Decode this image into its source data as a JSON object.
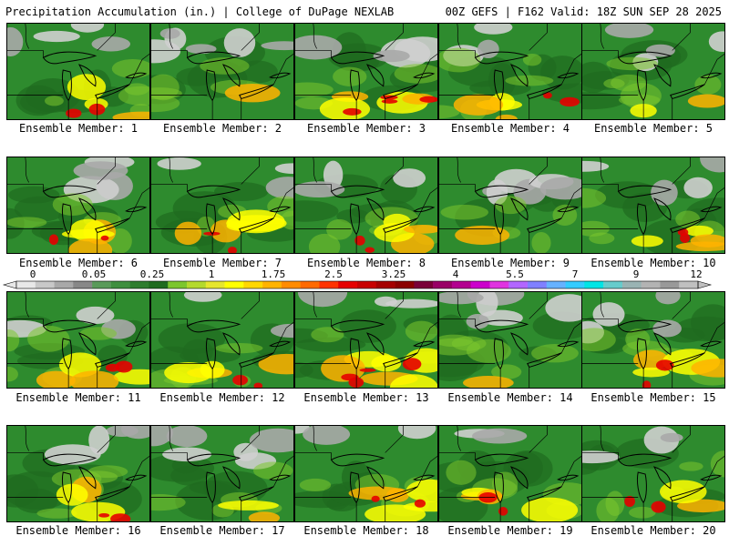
{
  "header": {
    "left": "Precipitation Accumulation (in.) | College of DuPage NEXLAB",
    "right": "00Z GEFS | F162 Valid: 18Z SUN SEP 28 2025"
  },
  "caption_prefix": "Ensemble Member: ",
  "members": [
    {
      "label": "Ensemble Member: 1",
      "gray": 0.3,
      "green": 0.45,
      "yellow": 0.2,
      "red": 0.05
    },
    {
      "label": "Ensemble Member: 2",
      "gray": 0.45,
      "green": 0.45,
      "yellow": 0.1,
      "red": 0.0
    },
    {
      "label": "Ensemble Member: 3",
      "gray": 0.25,
      "green": 0.35,
      "yellow": 0.3,
      "red": 0.1
    },
    {
      "label": "Ensemble Member: 4",
      "gray": 0.2,
      "green": 0.45,
      "yellow": 0.3,
      "red": 0.05
    },
    {
      "label": "Ensemble Member: 5",
      "gray": 0.3,
      "green": 0.55,
      "yellow": 0.15,
      "red": 0.0
    },
    {
      "label": "Ensemble Member: 6",
      "gray": 0.25,
      "green": 0.4,
      "yellow": 0.3,
      "red": 0.05
    },
    {
      "label": "Ensemble Member: 7",
      "gray": 0.2,
      "green": 0.4,
      "yellow": 0.35,
      "red": 0.05
    },
    {
      "label": "Ensemble Member: 8",
      "gray": 0.2,
      "green": 0.5,
      "yellow": 0.25,
      "red": 0.05
    },
    {
      "label": "Ensemble Member: 9",
      "gray": 0.45,
      "green": 0.45,
      "yellow": 0.1,
      "red": 0.0
    },
    {
      "label": "Ensemble Member: 10",
      "gray": 0.25,
      "green": 0.45,
      "yellow": 0.25,
      "red": 0.05
    },
    {
      "label": "Ensemble Member: 11",
      "gray": 0.2,
      "green": 0.45,
      "yellow": 0.3,
      "red": 0.05
    },
    {
      "label": "Ensemble Member: 12",
      "gray": 0.15,
      "green": 0.5,
      "yellow": 0.3,
      "red": 0.05
    },
    {
      "label": "Ensemble Member: 13",
      "gray": 0.2,
      "green": 0.3,
      "yellow": 0.4,
      "red": 0.1
    },
    {
      "label": "Ensemble Member: 14",
      "gray": 0.4,
      "green": 0.55,
      "yellow": 0.05,
      "red": 0.0
    },
    {
      "label": "Ensemble Member: 15",
      "gray": 0.25,
      "green": 0.45,
      "yellow": 0.25,
      "red": 0.05
    },
    {
      "label": "Ensemble Member: 16",
      "gray": 0.25,
      "green": 0.5,
      "yellow": 0.2,
      "red": 0.05
    },
    {
      "label": "Ensemble Member: 17",
      "gray": 0.4,
      "green": 0.45,
      "yellow": 0.15,
      "red": 0.0
    },
    {
      "label": "Ensemble Member: 18",
      "gray": 0.2,
      "green": 0.4,
      "yellow": 0.35,
      "red": 0.05
    },
    {
      "label": "Ensemble Member: 19",
      "gray": 0.15,
      "green": 0.55,
      "yellow": 0.25,
      "red": 0.05
    },
    {
      "label": "Ensemble Member: 20",
      "gray": 0.2,
      "green": 0.6,
      "yellow": 0.15,
      "red": 0.05
    }
  ],
  "colorbar": {
    "labels": [
      "0",
      "0.05",
      "0.25",
      "1",
      "1.75",
      "2.5",
      "3.25",
      "4",
      "5.5",
      "7",
      "9",
      "12"
    ],
    "colors": [
      "#e8e8e8",
      "#c8c8c8",
      "#a8a8a8",
      "#888888",
      "#5a9a5a",
      "#3f8f3f",
      "#2e7d2e",
      "#1f6b1f",
      "#7cc62d",
      "#b4d92d",
      "#e6e62d",
      "#ffff00",
      "#ffd700",
      "#ffb300",
      "#ff8c00",
      "#ff6a00",
      "#ff3300",
      "#e60000",
      "#c80000",
      "#a50000",
      "#8b0000",
      "#7a0038",
      "#990066",
      "#b3008f",
      "#cc00cc",
      "#e033e0",
      "#b266ff",
      "#8080ff",
      "#66b2ff",
      "#33ccff",
      "#00e5e5",
      "#66cccc",
      "#99b3b3",
      "#b3b3b3",
      "#999999",
      "#c0c0c0"
    ]
  },
  "palette": {
    "gray": "#a8a8a8",
    "light_gray": "#cfcfcf",
    "dark_green": "#1f6b1f",
    "green": "#2e8b2e",
    "light_green": "#7cc62d",
    "yellow": "#ffff00",
    "orange": "#ffb300",
    "red": "#e60000",
    "outline": "#000000"
  }
}
